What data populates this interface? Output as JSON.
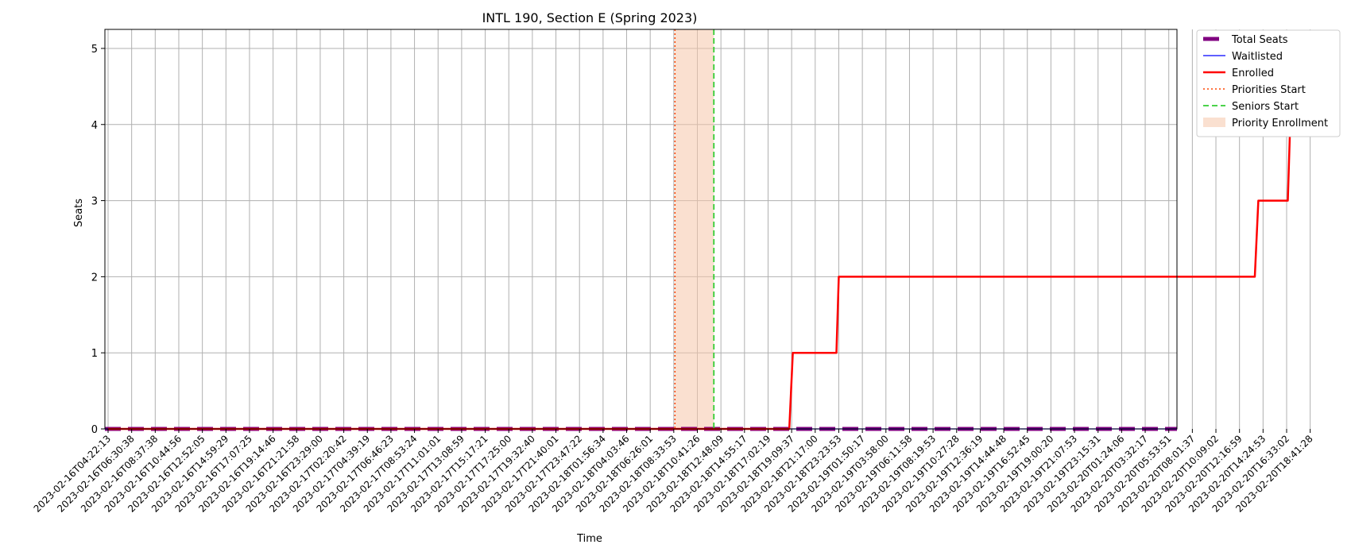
{
  "chart_data": {
    "type": "line",
    "title": "INTL 190, Section E (Spring 2023)",
    "xlabel": "Time",
    "ylabel": "Seats",
    "ylim": [
      0,
      5.25
    ],
    "y_ticks": [
      0,
      1,
      2,
      3,
      4,
      5
    ],
    "grid": true,
    "legend_position": "outside-top-right",
    "x_ticks": [
      "2023-02-16T04:22:13",
      "2023-02-16T06:30:38",
      "2023-02-16T08:37:38",
      "2023-02-16T10:44:56",
      "2023-02-16T12:52:05",
      "2023-02-16T14:59:29",
      "2023-02-16T17:07:25",
      "2023-02-16T19:14:46",
      "2023-02-16T21:21:58",
      "2023-02-16T23:29:00",
      "2023-02-17T02:20:42",
      "2023-02-17T04:39:19",
      "2023-02-17T06:46:23",
      "2023-02-17T08:53:24",
      "2023-02-17T11:01:01",
      "2023-02-17T13:08:59",
      "2023-02-17T15:17:21",
      "2023-02-17T17:25:00",
      "2023-02-17T19:32:40",
      "2023-02-17T21:40:01",
      "2023-02-17T23:47:22",
      "2023-02-18T01:56:34",
      "2023-02-18T04:03:46",
      "2023-02-18T06:26:01",
      "2023-02-18T08:33:53",
      "2023-02-18T10:41:26",
      "2023-02-18T12:48:09",
      "2023-02-18T14:55:17",
      "2023-02-18T17:02:19",
      "2023-02-18T19:09:37",
      "2023-02-18T21:17:00",
      "2023-02-18T23:23:53",
      "2023-02-19T01:50:17",
      "2023-02-19T03:58:00",
      "2023-02-19T06:11:58",
      "2023-02-19T08:19:53",
      "2023-02-19T10:27:28",
      "2023-02-19T12:36:19",
      "2023-02-19T14:44:48",
      "2023-02-19T16:52:45",
      "2023-02-19T19:00:20",
      "2023-02-19T21:07:53",
      "2023-02-19T23:15:31",
      "2023-02-20T01:24:06",
      "2023-02-20T03:32:17",
      "2023-02-20T05:53:51",
      "2023-02-20T08:01:37",
      "2023-02-20T10:09:02",
      "2023-02-20T12:16:59",
      "2023-02-20T14:24:53",
      "2023-02-20T16:33:02",
      "2023-02-20T18:41:28"
    ],
    "series": [
      {
        "name": "Total Seats",
        "color": "#800080",
        "style": "thick-dashed",
        "values": [
          0,
          0,
          0,
          0,
          0,
          0,
          0,
          0,
          0,
          0,
          0,
          0,
          0,
          0,
          0,
          0,
          0,
          0,
          0,
          0,
          0,
          0,
          0,
          0,
          0,
          0,
          0,
          0,
          0,
          0,
          0,
          0,
          0,
          0,
          0,
          0,
          0,
          0,
          0,
          0,
          0,
          0,
          0,
          0,
          0,
          0,
          0,
          0,
          0,
          0,
          0,
          0
        ]
      },
      {
        "name": "Waitlisted",
        "color": "#0000ff",
        "style": "solid",
        "values": [
          0,
          0,
          0,
          0,
          0,
          0,
          0,
          0,
          0,
          0,
          0,
          0,
          0,
          0,
          0,
          0,
          0,
          0,
          0,
          0,
          0,
          0,
          0,
          0,
          0,
          0,
          0,
          0,
          0,
          0,
          0,
          0,
          0,
          0,
          0,
          0,
          0,
          0,
          0,
          0,
          0,
          0,
          0,
          0,
          0,
          0,
          0,
          0,
          0,
          0,
          0,
          0
        ]
      },
      {
        "name": "Enrolled",
        "color": "#ff0000",
        "style": "solid",
        "points": [
          {
            "x": 0,
            "y": 0
          },
          {
            "x": 24.55,
            "y": 0
          },
          {
            "x": 25.2,
            "y": 0
          },
          {
            "x": 28.9,
            "y": 0
          },
          {
            "x": 29.05,
            "y": 1
          },
          {
            "x": 30.9,
            "y": 1
          },
          {
            "x": 31.0,
            "y": 2
          },
          {
            "x": 48.65,
            "y": 2
          },
          {
            "x": 48.8,
            "y": 3
          },
          {
            "x": 50.05,
            "y": 3
          },
          {
            "x": 50.15,
            "y": 4
          },
          {
            "x": 51.2,
            "y": 4
          },
          {
            "x": 51.35,
            "y": 5
          },
          {
            "x": 51.6,
            "y": 5
          }
        ]
      }
    ],
    "markers": [
      {
        "name": "Priorities Start",
        "color": "#ff4500",
        "style": "dotted",
        "x": 24.05
      },
      {
        "name": "Seniors Start",
        "color": "#32cd32",
        "style": "dashed",
        "x": 25.7
      }
    ],
    "shaded_regions": [
      {
        "name": "Priority Enrollment",
        "color": "#f5c6aa",
        "x_start": 24.05,
        "x_end": 25.7
      }
    ]
  }
}
